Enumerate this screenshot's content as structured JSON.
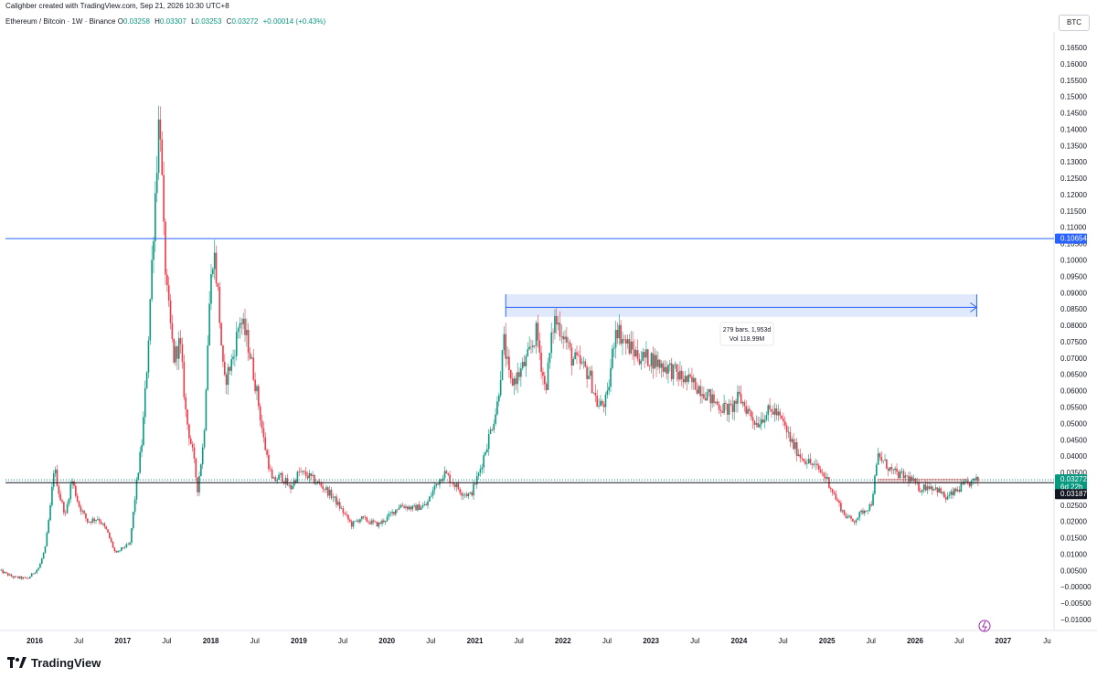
{
  "header": {
    "credit": "Calighber created with TradingView.com, Sep 21, 2026 10:30 UTC+8",
    "symbol": "Ethereum / Bitcoin · 1W · Binance",
    "open_label": "O",
    "open": "0.03258",
    "high_label": "H",
    "high": "0.03307",
    "low_label": "L",
    "low": "0.03253",
    "close_label": "C",
    "close": "0.03272",
    "change": "+0.00014 (+0.43%)",
    "currency": "BTC"
  },
  "brand": {
    "name": "TradingView"
  },
  "colors": {
    "up": "#089981",
    "down": "#f23645",
    "level_line": "#2962ff",
    "range_fill": "#dbe5fb",
    "price_badge": "#089981",
    "black_badge": "#131722"
  },
  "chart_data": {
    "type": "candlestick",
    "timeframe": "1W",
    "y_axis": {
      "min": -0.01,
      "max": 0.165,
      "step": 0.005,
      "scale": "linear",
      "side": "right"
    },
    "x_ticks": [
      "2016",
      "Jul",
      "2017",
      "Jul",
      "2018",
      "Jul",
      "2019",
      "Jul",
      "2020",
      "Jul",
      "2021",
      "Jul",
      "2022",
      "Jul",
      "2023",
      "Jul",
      "2024",
      "Jul",
      "2025",
      "Jul",
      "2026",
      "Jul",
      "2027",
      "Ju"
    ],
    "year_ticks": [
      "2016",
      "2017",
      "2018",
      "2019",
      "2020",
      "2021",
      "2022",
      "2023",
      "2024",
      "2025",
      "2026",
      "2027"
    ],
    "close_path": [
      [
        2015.6,
        0.005
      ],
      [
        2015.75,
        0.003
      ],
      [
        2015.92,
        0.0025
      ],
      [
        2016.05,
        0.006
      ],
      [
        2016.12,
        0.012
      ],
      [
        2016.18,
        0.025
      ],
      [
        2016.22,
        0.037
      ],
      [
        2016.28,
        0.028
      ],
      [
        2016.35,
        0.022
      ],
      [
        2016.42,
        0.033
      ],
      [
        2016.5,
        0.025
      ],
      [
        2016.6,
        0.02
      ],
      [
        2016.72,
        0.021
      ],
      [
        2016.82,
        0.017
      ],
      [
        2016.92,
        0.01
      ],
      [
        2017.0,
        0.012
      ],
      [
        2017.08,
        0.013
      ],
      [
        2017.15,
        0.03
      ],
      [
        2017.22,
        0.045
      ],
      [
        2017.28,
        0.07
      ],
      [
        2017.35,
        0.11
      ],
      [
        2017.42,
        0.148
      ],
      [
        2017.46,
        0.11
      ],
      [
        2017.5,
        0.09
      ],
      [
        2017.58,
        0.07
      ],
      [
        2017.65,
        0.075
      ],
      [
        2017.72,
        0.052
      ],
      [
        2017.8,
        0.04
      ],
      [
        2017.85,
        0.03
      ],
      [
        2017.92,
        0.045
      ],
      [
        2017.98,
        0.085
      ],
      [
        2018.03,
        0.104
      ],
      [
        2018.08,
        0.09
      ],
      [
        2018.15,
        0.062
      ],
      [
        2018.25,
        0.07
      ],
      [
        2018.33,
        0.082
      ],
      [
        2018.42,
        0.075
      ],
      [
        2018.52,
        0.06
      ],
      [
        2018.6,
        0.045
      ],
      [
        2018.7,
        0.032
      ],
      [
        2018.8,
        0.034
      ],
      [
        2018.9,
        0.03
      ],
      [
        2019.0,
        0.035
      ],
      [
        2019.1,
        0.034
      ],
      [
        2019.2,
        0.032
      ],
      [
        2019.3,
        0.03
      ],
      [
        2019.4,
        0.027
      ],
      [
        2019.5,
        0.023
      ],
      [
        2019.6,
        0.019
      ],
      [
        2019.7,
        0.021
      ],
      [
        2019.8,
        0.02
      ],
      [
        2019.9,
        0.019
      ],
      [
        2020.0,
        0.021
      ],
      [
        2020.15,
        0.025
      ],
      [
        2020.3,
        0.024
      ],
      [
        2020.45,
        0.025
      ],
      [
        2020.55,
        0.031
      ],
      [
        2020.65,
        0.035
      ],
      [
        2020.75,
        0.032
      ],
      [
        2020.85,
        0.029
      ],
      [
        2020.95,
        0.028
      ],
      [
        2021.05,
        0.035
      ],
      [
        2021.15,
        0.045
      ],
      [
        2021.25,
        0.055
      ],
      [
        2021.33,
        0.075
      ],
      [
        2021.4,
        0.062
      ],
      [
        2021.5,
        0.065
      ],
      [
        2021.6,
        0.07
      ],
      [
        2021.7,
        0.078
      ],
      [
        2021.8,
        0.06
      ],
      [
        2021.9,
        0.082
      ],
      [
        2022.0,
        0.078
      ],
      [
        2022.1,
        0.07
      ],
      [
        2022.2,
        0.068
      ],
      [
        2022.3,
        0.065
      ],
      [
        2022.4,
        0.055
      ],
      [
        2022.5,
        0.057
      ],
      [
        2022.6,
        0.08
      ],
      [
        2022.7,
        0.075
      ],
      [
        2022.8,
        0.072
      ],
      [
        2022.9,
        0.07
      ],
      [
        2023.0,
        0.07
      ],
      [
        2023.1,
        0.068
      ],
      [
        2023.2,
        0.067
      ],
      [
        2023.3,
        0.065
      ],
      [
        2023.4,
        0.063
      ],
      [
        2023.5,
        0.062
      ],
      [
        2023.6,
        0.06
      ],
      [
        2023.7,
        0.057
      ],
      [
        2023.8,
        0.055
      ],
      [
        2023.9,
        0.054
      ],
      [
        2024.0,
        0.058
      ],
      [
        2024.1,
        0.054
      ],
      [
        2024.2,
        0.05
      ],
      [
        2024.3,
        0.053
      ],
      [
        2024.4,
        0.054
      ],
      [
        2024.5,
        0.05
      ],
      [
        2024.6,
        0.044
      ],
      [
        2024.7,
        0.04
      ],
      [
        2024.8,
        0.038
      ],
      [
        2024.9,
        0.036
      ],
      [
        2025.0,
        0.033
      ],
      [
        2025.1,
        0.027
      ],
      [
        2025.2,
        0.022
      ],
      [
        2025.3,
        0.02
      ],
      [
        2025.4,
        0.023
      ],
      [
        2025.5,
        0.025
      ],
      [
        2025.58,
        0.04
      ],
      [
        2025.65,
        0.038
      ],
      [
        2025.75,
        0.035
      ],
      [
        2025.85,
        0.034
      ],
      [
        2025.95,
        0.033
      ],
      [
        2026.05,
        0.03
      ],
      [
        2026.15,
        0.031
      ],
      [
        2026.25,
        0.03
      ],
      [
        2026.35,
        0.027
      ],
      [
        2026.45,
        0.029
      ],
      [
        2026.55,
        0.031
      ],
      [
        2026.65,
        0.032
      ],
      [
        2026.72,
        0.0327
      ]
    ],
    "horizontal_lines": [
      {
        "price": 0.10654,
        "label": "0.10654",
        "color": "#2962ff"
      },
      {
        "price": 0.03187,
        "label": "0.03187",
        "color": "#131722"
      }
    ],
    "current_price": {
      "price": 0.03272,
      "label": "0.03272",
      "countdown": "6d 22h"
    },
    "date_range_measure": {
      "from": 2021.35,
      "to": 2026.7,
      "price_low": 0.0826,
      "price_high": 0.0895,
      "arrow_price": 0.0855,
      "bars_text": "279 bars, 1,953d",
      "vol_text": "Vol 118.99M"
    },
    "resistance_box": {
      "from": 2025.58,
      "to": 2026.6,
      "price_low": 0.0318,
      "price_high": 0.033
    }
  }
}
